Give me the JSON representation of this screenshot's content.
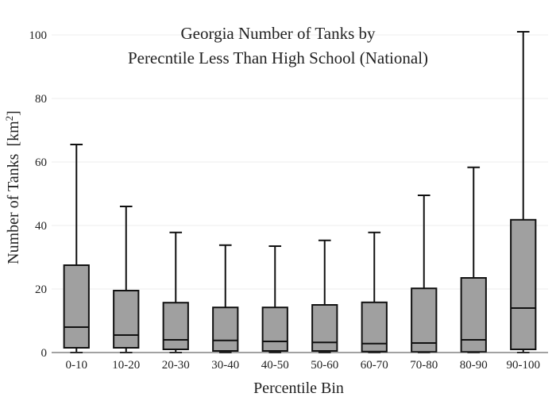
{
  "chart_data": {
    "type": "box",
    "title_lines": [
      "Georgia Number of Tanks by",
      "Perecntile Less Than High School (National)"
    ],
    "xlabel": "Percentile Bin",
    "ylabel": "Number of Tanks",
    "ylabel_unit_base": "[km",
    "ylabel_unit_sup": "2",
    "ylabel_unit_close": "]",
    "ylim": [
      0,
      104
    ],
    "yticks": [
      0,
      20,
      40,
      60,
      80,
      100
    ],
    "grid": true,
    "colors": {
      "box_fill": "#a0a0a0",
      "box_stroke": "#111111"
    },
    "categories": [
      "0-10",
      "10-20",
      "20-30",
      "30-40",
      "40-50",
      "50-60",
      "60-70",
      "70-80",
      "80-90",
      "90-100"
    ],
    "boxes": [
      {
        "min": 0,
        "q1": 1.5,
        "median": 8.0,
        "q3": 27.5,
        "max": 65.5
      },
      {
        "min": 0,
        "q1": 1.5,
        "median": 5.5,
        "q3": 19.5,
        "max": 46.0
      },
      {
        "min": 0,
        "q1": 1.0,
        "median": 4.0,
        "q3": 15.7,
        "max": 37.8
      },
      {
        "min": 0,
        "q1": 0.5,
        "median": 3.8,
        "q3": 14.2,
        "max": 33.8
      },
      {
        "min": 0,
        "q1": 0.5,
        "median": 3.5,
        "q3": 14.2,
        "max": 33.5
      },
      {
        "min": 0,
        "q1": 0.5,
        "median": 3.2,
        "q3": 15.0,
        "max": 35.3
      },
      {
        "min": 0,
        "q1": 0.3,
        "median": 2.8,
        "q3": 15.8,
        "max": 37.8
      },
      {
        "min": 0,
        "q1": 0.2,
        "median": 3.0,
        "q3": 20.2,
        "max": 49.5
      },
      {
        "min": 0,
        "q1": 0.2,
        "median": 4.0,
        "q3": 23.5,
        "max": 58.3
      },
      {
        "min": 0,
        "q1": 1.0,
        "median": 14.0,
        "q3": 41.8,
        "max": 101.0
      }
    ]
  }
}
